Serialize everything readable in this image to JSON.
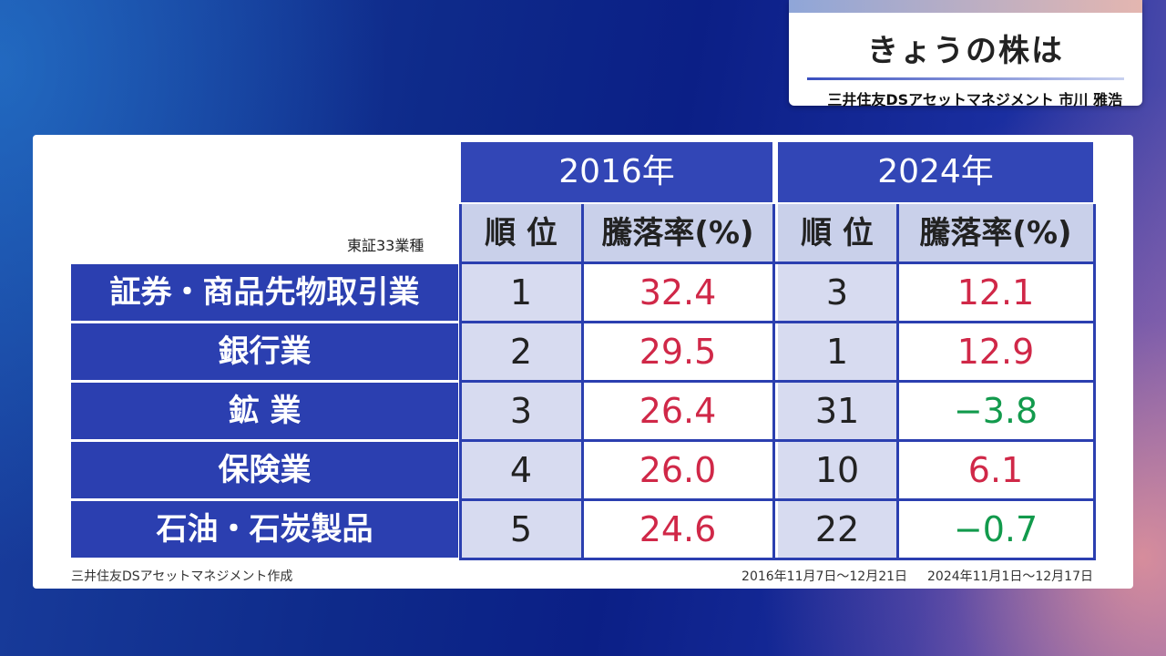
{
  "header": {
    "title": "きょうの株は",
    "subtitle": "三井住友DSアセットマネジメント 市川 雅浩"
  },
  "table": {
    "industry_caption": "東証33業種",
    "years": [
      "2016年",
      "2024年"
    ],
    "column_headers": {
      "rank": "順 位",
      "change": "騰落率(%)"
    },
    "footer_source": "三井住友DSアセットマネジメント作成",
    "footer_period_2016": "2016年11月7日～12月21日",
    "footer_period_2024": "2024年11月1日～12月17日"
  },
  "chart_data": {
    "type": "table",
    "title": "",
    "columns": [
      "東証33業種",
      "2016年 順位",
      "2016年 騰落率(%)",
      "2024年 順位",
      "2024年 騰落率(%)"
    ],
    "rows": [
      {
        "industry": "証券・商品先物取引業",
        "rank_2016": "1",
        "change_2016": "32.4",
        "rank_2024": "3",
        "change_2024": "12.1",
        "sign_2024": "pos"
      },
      {
        "industry": "銀行業",
        "rank_2016": "2",
        "change_2016": "29.5",
        "rank_2024": "1",
        "change_2024": "12.9",
        "sign_2024": "pos"
      },
      {
        "industry": "鉱 業",
        "rank_2016": "3",
        "change_2016": "26.4",
        "rank_2024": "31",
        "change_2024": "−3.8",
        "sign_2024": "neg"
      },
      {
        "industry": "保険業",
        "rank_2016": "4",
        "change_2016": "26.0",
        "rank_2024": "10",
        "change_2024": "6.1",
        "sign_2024": "pos"
      },
      {
        "industry": "石油・石炭製品",
        "rank_2016": "5",
        "change_2016": "24.6",
        "rank_2024": "22",
        "change_2024": "−0.7",
        "sign_2024": "neg"
      }
    ]
  },
  "colors": {
    "header_blue": "#3246b6",
    "positive": "#d02848",
    "negative": "#129a4c"
  }
}
